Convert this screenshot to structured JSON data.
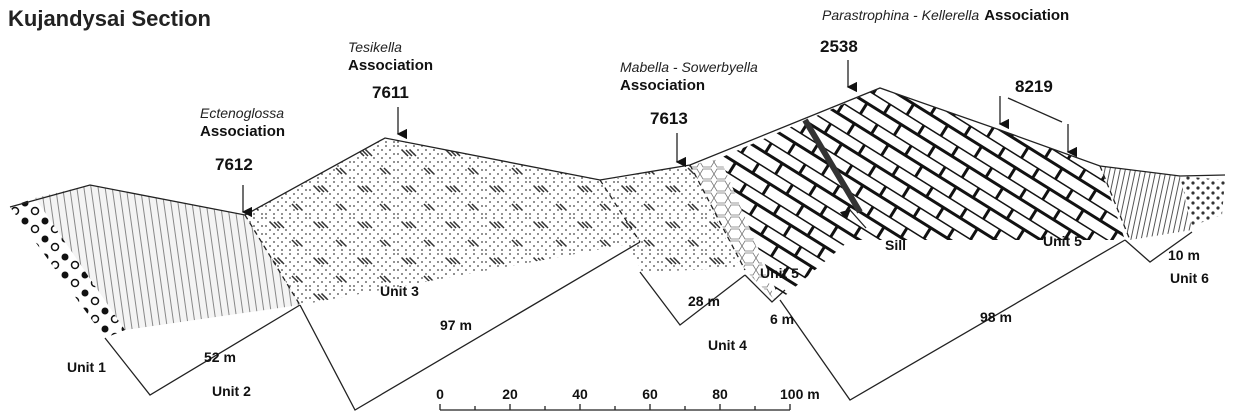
{
  "title": "Kujandysai Section",
  "associations": [
    {
      "genus": "Ectenoglossa",
      "label": "Association"
    },
    {
      "genus": "Tesikella",
      "label": "Association"
    },
    {
      "genus": "Mabella - Sowerbyella",
      "label": "Association"
    },
    {
      "genus": "Parastrophina  - Kellerella",
      "label": "Association"
    }
  ],
  "samples": [
    "7612",
    "7611",
    "7613",
    "2538",
    "8219"
  ],
  "units": [
    "Unit 1",
    "Unit 2",
    "Unit 3",
    "Unit 4",
    "Unit 5",
    "Unit 5",
    "Unit 6"
  ],
  "thicknesses": [
    "52 m",
    "97 m",
    "28 m",
    "6 m",
    "98 m",
    "10 m"
  ],
  "sill": "Sill",
  "scale_bar": [
    "0",
    "20",
    "40",
    "60",
    "80",
    "100 m"
  ]
}
